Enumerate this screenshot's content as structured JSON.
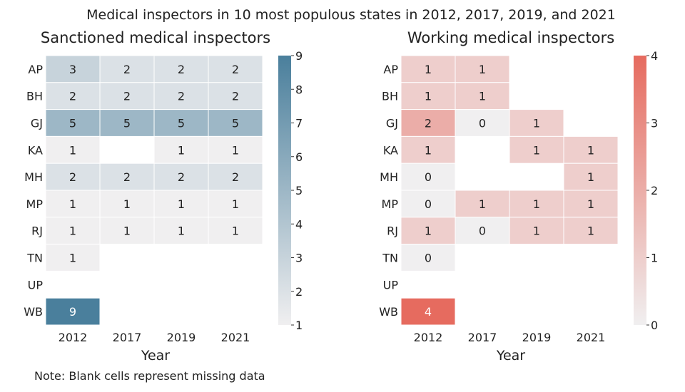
{
  "figure": {
    "title": "Medical inspectors in 10 most populous states in 2012, 2017, 2019, and 2021",
    "note": "Note: Blank cells represent missing data"
  },
  "chart_data": [
    {
      "type": "heatmap",
      "title": "Sanctioned medical inspectors",
      "xlabel": "Year",
      "ylabel": "",
      "x_categories": [
        "2012",
        "2017",
        "2019",
        "2021"
      ],
      "y_categories": [
        "AP",
        "BH",
        "GJ",
        "KA",
        "MH",
        "MP",
        "RJ",
        "TN",
        "UP",
        "WB"
      ],
      "values": [
        [
          3,
          2,
          2,
          2
        ],
        [
          2,
          2,
          2,
          2
        ],
        [
          5,
          5,
          5,
          5
        ],
        [
          1,
          null,
          1,
          1
        ],
        [
          2,
          2,
          2,
          2
        ],
        [
          1,
          1,
          1,
          1
        ],
        [
          1,
          1,
          1,
          1
        ],
        [
          1,
          null,
          null,
          null
        ],
        [
          null,
          null,
          null,
          null
        ],
        [
          9,
          null,
          null,
          null
        ]
      ],
      "colorbar": {
        "min": 1,
        "max": 9,
        "ticks": [
          1,
          2,
          3,
          4,
          5,
          6,
          7,
          8,
          9
        ]
      },
      "colors": {
        "low": "#f0eff0",
        "high": "#4a7f9c",
        "text_dark": "#222222",
        "text_light": "#ffffff"
      }
    },
    {
      "type": "heatmap",
      "title": "Working medical inspectors",
      "xlabel": "Year",
      "ylabel": "",
      "x_categories": [
        "2012",
        "2017",
        "2019",
        "2021"
      ],
      "y_categories": [
        "AP",
        "BH",
        "GJ",
        "KA",
        "MH",
        "MP",
        "RJ",
        "TN",
        "UP",
        "WB"
      ],
      "values": [
        [
          1,
          1,
          null,
          null
        ],
        [
          1,
          1,
          null,
          null
        ],
        [
          2,
          0,
          1,
          null
        ],
        [
          1,
          null,
          1,
          1
        ],
        [
          0,
          null,
          null,
          1
        ],
        [
          0,
          1,
          1,
          1
        ],
        [
          1,
          0,
          1,
          1
        ],
        [
          0,
          null,
          null,
          null
        ],
        [
          null,
          null,
          null,
          null
        ],
        [
          4,
          null,
          null,
          null
        ]
      ],
      "colorbar": {
        "min": 0,
        "max": 4,
        "ticks": [
          0,
          1,
          2,
          3,
          4
        ]
      },
      "colors": {
        "low": "#f0eff0",
        "high": "#e66b5f",
        "text_dark": "#222222",
        "text_light": "#ffffff"
      }
    }
  ]
}
